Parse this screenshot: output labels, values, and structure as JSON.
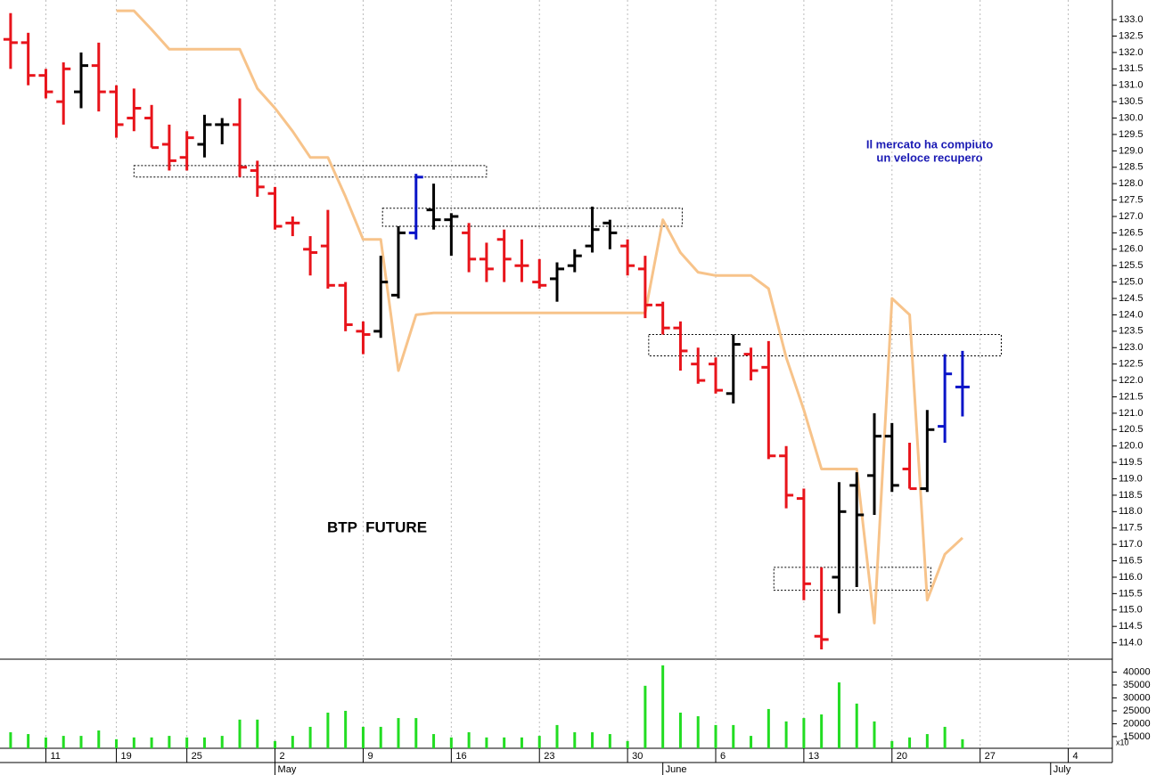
{
  "chart_data": {
    "type": "ohlc",
    "categories": [
      null,
      null,
      "11",
      null,
      null,
      null,
      "19",
      null,
      null,
      null,
      "25",
      null,
      null,
      null,
      null,
      "2",
      null,
      null,
      null,
      null,
      "9",
      null,
      null,
      null,
      null,
      "16",
      null,
      null,
      null,
      null,
      "23",
      null,
      null,
      null,
      null,
      "30",
      null,
      null,
      null,
      null,
      "6",
      null,
      null,
      null,
      null,
      "13",
      null,
      null,
      null,
      null,
      "20",
      null,
      null,
      null,
      null,
      "27",
      null,
      null,
      null,
      null,
      "4",
      null,
      null
    ],
    "month_categories": [
      null,
      null,
      null,
      null,
      null,
      null,
      null,
      null,
      null,
      null,
      null,
      null,
      null,
      null,
      null,
      "May",
      null,
      null,
      null,
      null,
      null,
      null,
      null,
      null,
      null,
      null,
      null,
      null,
      null,
      null,
      null,
      null,
      null,
      null,
      null,
      null,
      null,
      "June",
      null,
      null,
      null,
      null,
      null,
      null,
      null,
      null,
      null,
      null,
      null,
      null,
      null,
      null,
      null,
      null,
      null,
      null,
      null,
      null,
      null,
      "July",
      null,
      null,
      null
    ],
    "open": [
      132.4,
      132.3,
      131.3,
      130.5,
      130.8,
      131.6,
      130.8,
      130.0,
      130.0,
      129.2,
      128.8,
      129.2,
      129.8,
      129.8,
      128.4,
      127.7,
      126.8,
      126.0,
      126.1,
      124.9,
      123.5,
      123.5,
      124.6,
      126.5,
      127.2,
      126.9,
      126.5,
      125.7,
      126.3,
      125.5,
      125.0,
      125.1,
      125.5,
      126.1,
      126.8,
      126.1,
      125.4,
      124.3,
      123.6,
      122.5,
      122.5,
      121.6,
      122.8,
      122.4,
      119.7,
      118.4,
      114.2,
      116.0,
      118.8,
      119.1,
      120.3,
      119.3,
      118.7,
      120.6,
      121.8,
      null,
      null,
      null,
      null,
      null,
      null,
      null,
      null
    ],
    "high": [
      133.2,
      132.6,
      131.5,
      131.7,
      132.0,
      132.3,
      131.0,
      130.9,
      130.4,
      129.8,
      129.6,
      130.1,
      130.0,
      130.6,
      128.7,
      127.9,
      127.0,
      126.4,
      127.2,
      125.0,
      123.8,
      125.8,
      126.7,
      128.3,
      128.0,
      127.1,
      126.8,
      126.2,
      126.6,
      126.3,
      125.7,
      125.6,
      126.0,
      127.3,
      126.9,
      126.3,
      125.8,
      124.4,
      123.8,
      123.0,
      122.7,
      123.4,
      123.0,
      123.2,
      120.0,
      118.7,
      116.3,
      118.9,
      119.2,
      121.0,
      120.7,
      120.1,
      121.1,
      122.8,
      122.9,
      null,
      null,
      null,
      null,
      null,
      null,
      null,
      null
    ],
    "low": [
      131.5,
      131.0,
      130.6,
      129.8,
      130.3,
      130.2,
      129.4,
      129.6,
      129.1,
      128.4,
      128.4,
      128.8,
      129.2,
      128.2,
      127.6,
      126.6,
      126.4,
      125.2,
      124.8,
      123.5,
      122.8,
      123.3,
      124.5,
      126.3,
      126.6,
      125.8,
      125.3,
      125.0,
      125.0,
      125.0,
      124.8,
      124.4,
      125.3,
      125.9,
      126.0,
      125.2,
      123.9,
      123.4,
      122.3,
      121.9,
      121.6,
      121.3,
      122.0,
      119.6,
      118.1,
      115.3,
      113.8,
      114.9,
      115.7,
      117.9,
      118.6,
      118.7,
      118.6,
      120.1,
      120.9,
      null,
      null,
      null,
      null,
      null,
      null,
      null,
      null
    ],
    "close": [
      132.3,
      131.3,
      130.8,
      131.5,
      131.6,
      130.8,
      129.8,
      130.3,
      129.1,
      128.7,
      129.4,
      129.8,
      129.8,
      128.5,
      127.9,
      126.7,
      126.8,
      125.9,
      124.9,
      123.7,
      123.4,
      125.0,
      126.5,
      128.2,
      126.9,
      127.0,
      125.7,
      125.4,
      125.7,
      125.5,
      124.9,
      125.4,
      125.8,
      126.6,
      126.5,
      125.5,
      124.3,
      123.6,
      122.9,
      122.0,
      121.7,
      123.1,
      122.3,
      119.7,
      118.5,
      115.8,
      114.1,
      118.0,
      117.9,
      120.3,
      118.8,
      118.7,
      120.5,
      122.2,
      121.8,
      null,
      null,
      null,
      null,
      null,
      null,
      null,
      null
    ],
    "bar_colors": [
      "#e8141b",
      "#e8141b",
      "#e8141b",
      "#e8141b",
      "#000000",
      "#e8141b",
      "#e8141b",
      "#e8141b",
      "#e8141b",
      "#e8141b",
      "#e8141b",
      "#000000",
      "#000000",
      "#e8141b",
      "#e8141b",
      "#e8141b",
      "#e8141b",
      "#e8141b",
      "#e8141b",
      "#e8141b",
      "#e8141b",
      "#000000",
      "#000000",
      "#0a14c8",
      "#000000",
      "#000000",
      "#e8141b",
      "#e8141b",
      "#e8141b",
      "#e8141b",
      "#e8141b",
      "#000000",
      "#000000",
      "#000000",
      "#000000",
      "#e8141b",
      "#e8141b",
      "#e8141b",
      "#e8141b",
      "#e8141b",
      "#e8141b",
      "#000000",
      "#e8141b",
      "#e8141b",
      "#e8141b",
      "#e8141b",
      "#e8141b",
      "#000000",
      "#000000",
      "#000000",
      "#000000",
      "#e8141b",
      "#000000",
      "#0a14c8",
      "#0a14c8",
      null,
      null,
      null,
      null,
      null,
      null,
      null,
      null
    ],
    "line": {
      "color": "#f7c38a",
      "values": [
        null,
        null,
        null,
        null,
        null,
        null,
        133.27,
        133.27,
        132.7,
        132.1,
        132.1,
        132.1,
        132.1,
        132.1,
        130.9,
        130.3,
        129.6,
        128.8,
        128.8,
        127.6,
        126.3,
        126.3,
        122.3,
        124.0,
        124.06,
        124.06,
        124.06,
        124.06,
        124.06,
        124.06,
        124.06,
        124.06,
        124.06,
        124.06,
        124.06,
        124.06,
        124.06,
        126.9,
        125.9,
        125.3,
        125.2,
        125.2,
        125.2,
        124.8,
        122.7,
        121.1,
        119.3,
        119.3,
        119.3,
        114.6,
        124.5,
        124.0,
        115.3,
        116.7,
        117.2,
        null,
        null,
        null,
        null,
        null,
        null,
        null,
        null
      ]
    },
    "ylim": [
      113.5,
      133.6
    ],
    "yticks": [
      {
        "value": 114,
        "label": "114.0"
      },
      {
        "value": 114.5,
        "label": "114.5"
      },
      {
        "value": 115,
        "label": "115.0"
      },
      {
        "value": 115.5,
        "label": "115.5"
      },
      {
        "value": 116,
        "label": "116.0"
      },
      {
        "value": 116.5,
        "label": "116.5"
      },
      {
        "value": 117,
        "label": "117.0"
      },
      {
        "value": 117.5,
        "label": "117.5"
      },
      {
        "value": 118,
        "label": "118.0"
      },
      {
        "value": 118.5,
        "label": "118.5"
      },
      {
        "value": 119,
        "label": "119.0"
      },
      {
        "value": 119.5,
        "label": "119.5"
      },
      {
        "value": 120,
        "label": "120.0"
      },
      {
        "value": 120.5,
        "label": "120.5"
      },
      {
        "value": 121,
        "label": "121.0"
      },
      {
        "value": 121.5,
        "label": "121.5"
      },
      {
        "value": 122,
        "label": "122.0"
      },
      {
        "value": 122.5,
        "label": "122.5"
      },
      {
        "value": 123,
        "label": "123.0"
      },
      {
        "value": 123.5,
        "label": "123.5"
      },
      {
        "value": 124,
        "label": "124.0"
      },
      {
        "value": 124.5,
        "label": "124.5"
      },
      {
        "value": 125,
        "label": "125.0"
      },
      {
        "value": 125.5,
        "label": "125.5"
      },
      {
        "value": 126,
        "label": "126.0"
      },
      {
        "value": 126.5,
        "label": "126.5"
      },
      {
        "value": 127,
        "label": "127.0"
      },
      {
        "value": 127.5,
        "label": "127.5"
      },
      {
        "value": 128,
        "label": "128.0"
      },
      {
        "value": 128.5,
        "label": "128.5"
      },
      {
        "value": 129,
        "label": "129.0"
      },
      {
        "value": 129.5,
        "label": "129.5"
      },
      {
        "value": 130,
        "label": "130.0"
      },
      {
        "value": 130.5,
        "label": "130.5"
      },
      {
        "value": 131,
        "label": "131.0"
      },
      {
        "value": 131.5,
        "label": "131.5"
      },
      {
        "value": 132,
        "label": "132.0"
      },
      {
        "value": 132.5,
        "label": "132.5"
      },
      {
        "value": 133,
        "label": "133.0"
      }
    ],
    "grid": "x",
    "zones": [
      {
        "start": 7.0,
        "end": 27.0,
        "top": 128.55,
        "bottom": 128.2
      },
      {
        "start": 21.1,
        "end": 38.1,
        "top": 127.25,
        "bottom": 126.7
      },
      {
        "start": 36.2,
        "end": 56.2,
        "top": 123.4,
        "bottom": 122.75
      },
      {
        "start": 43.3,
        "end": 52.2,
        "top": 116.3,
        "bottom": 115.6
      }
    ],
    "annotation_lines": [
      "Il mercato ha compiuto",
      "un veloce recupero"
    ],
    "label": "BTP  FUTURE",
    "volume": {
      "color": "#22dd22",
      "values": [
        16700,
        16000,
        14700,
        15300,
        15300,
        17400,
        14000,
        14700,
        14700,
        15300,
        14700,
        14700,
        15300,
        21600,
        21600,
        13300,
        15300,
        18800,
        24300,
        25000,
        18800,
        18800,
        22200,
        22200,
        16000,
        14700,
        16700,
        14700,
        14700,
        14700,
        15300,
        19500,
        16700,
        16700,
        16000,
        13300,
        34700,
        42600,
        24300,
        22900,
        19500,
        19500,
        15300,
        25700,
        20900,
        22200,
        23600,
        36000,
        27800,
        20900,
        13300,
        14700,
        16000,
        18800,
        14000,
        null,
        null,
        null,
        null,
        null,
        null,
        null,
        null
      ],
      "ylim": [
        10500,
        44300
      ],
      "yticks": [
        15000,
        20000,
        25000,
        30000,
        35000,
        40000
      ],
      "scale_label": "x10"
    }
  }
}
